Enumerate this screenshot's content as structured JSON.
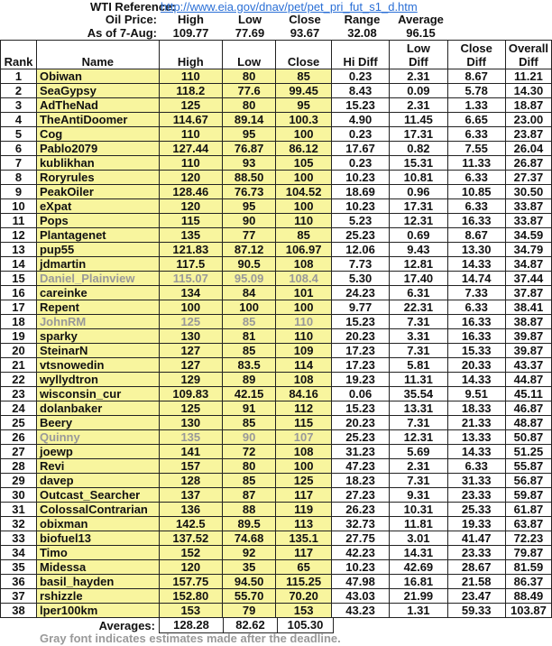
{
  "reference": {
    "label": "WTI Reference:",
    "url": "http://www.eia.gov/dnav/pet/pet_pri_fut_s1_d.htm"
  },
  "oil_price": {
    "label": "Oil Price:",
    "headers": [
      "High",
      "Low",
      "Close",
      "Range",
      "Average"
    ]
  },
  "as_of": {
    "label": "As of 7-Aug:",
    "values": [
      "109.77",
      "77.69",
      "93.67",
      "32.08",
      "96.15"
    ]
  },
  "columns": [
    "Rank",
    "Name",
    "High",
    "Low",
    "Close",
    "Hi Diff",
    "Low Diff",
    "Close Diff",
    "Overall Diff"
  ],
  "rows": [
    [
      "1",
      "Obiwan",
      "110",
      "80",
      "85",
      "0.23",
      "2.31",
      "8.67",
      "11.21"
    ],
    [
      "2",
      "SeaGypsy",
      "118.2",
      "77.6",
      "99.45",
      "8.43",
      "0.09",
      "5.78",
      "14.30"
    ],
    [
      "3",
      "AdTheNad",
      "125",
      "80",
      "95",
      "15.23",
      "2.31",
      "1.33",
      "18.87"
    ],
    [
      "4",
      "TheAntiDoomer",
      "114.67",
      "89.14",
      "100.3",
      "4.90",
      "11.45",
      "6.65",
      "23.00"
    ],
    [
      "5",
      "Cog",
      "110",
      "95",
      "100",
      "0.23",
      "17.31",
      "6.33",
      "23.87"
    ],
    [
      "6",
      "Pablo2079",
      "127.44",
      "76.87",
      "86.12",
      "17.67",
      "0.82",
      "7.55",
      "26.04"
    ],
    [
      "7",
      "kublikhan",
      "110",
      "93",
      "105",
      "0.23",
      "15.31",
      "11.33",
      "26.87"
    ],
    [
      "8",
      "Roryrules",
      "120",
      "88.50",
      "100",
      "10.23",
      "10.81",
      "6.33",
      "27.37"
    ],
    [
      "9",
      "PeakOiler",
      "128.46",
      "76.73",
      "104.52",
      "18.69",
      "0.96",
      "10.85",
      "30.50"
    ],
    [
      "10",
      "eXpat",
      "120",
      "95",
      "100",
      "10.23",
      "17.31",
      "6.33",
      "33.87"
    ],
    [
      "11",
      "Pops",
      "115",
      "90",
      "110",
      "5.23",
      "12.31",
      "16.33",
      "33.87"
    ],
    [
      "12",
      "Plantagenet",
      "135",
      "77",
      "85",
      "25.23",
      "0.69",
      "8.67",
      "34.59"
    ],
    [
      "13",
      "pup55",
      "121.83",
      "87.12",
      "106.97",
      "12.06",
      "9.43",
      "13.30",
      "34.79"
    ],
    [
      "14",
      "jdmartin",
      "117.5",
      "90.5",
      "108",
      "7.73",
      "12.81",
      "14.33",
      "34.87"
    ],
    [
      "15",
      "Daniel_Plainview",
      "115.07",
      "95.09",
      "108.4",
      "5.30",
      "17.40",
      "14.74",
      "37.44"
    ],
    [
      "16",
      "careinke",
      "134",
      "84",
      "101",
      "24.23",
      "6.31",
      "7.33",
      "37.87"
    ],
    [
      "17",
      "Repent",
      "100",
      "100",
      "100",
      "9.77",
      "22.31",
      "6.33",
      "38.41"
    ],
    [
      "18",
      "JohnRM",
      "125",
      "85",
      "110",
      "15.23",
      "7.31",
      "16.33",
      "38.87"
    ],
    [
      "19",
      "sparky",
      "130",
      "81",
      "110",
      "20.23",
      "3.31",
      "16.33",
      "39.87"
    ],
    [
      "20",
      "SteinarN",
      "127",
      "85",
      "109",
      "17.23",
      "7.31",
      "15.33",
      "39.87"
    ],
    [
      "21",
      "vtsnowedin",
      "127",
      "83.5",
      "114",
      "17.23",
      "5.81",
      "20.33",
      "43.37"
    ],
    [
      "22",
      "wyllydtron",
      "129",
      "89",
      "108",
      "19.23",
      "11.31",
      "14.33",
      "44.87"
    ],
    [
      "23",
      "wisconsin_cur",
      "109.83",
      "42.15",
      "84.16",
      "0.06",
      "35.54",
      "9.51",
      "45.11"
    ],
    [
      "24",
      "dolanbaker",
      "125",
      "91",
      "112",
      "15.23",
      "13.31",
      "18.33",
      "46.87"
    ],
    [
      "25",
      "Beery",
      "130",
      "85",
      "115",
      "20.23",
      "7.31",
      "21.33",
      "48.87"
    ],
    [
      "26",
      "Quinny",
      "135",
      "90",
      "107",
      "25.23",
      "12.31",
      "13.33",
      "50.87"
    ],
    [
      "27",
      "joewp",
      "141",
      "72",
      "108",
      "31.23",
      "5.69",
      "14.33",
      "51.25"
    ],
    [
      "28",
      "Revi",
      "157",
      "80",
      "100",
      "47.23",
      "2.31",
      "6.33",
      "55.87"
    ],
    [
      "29",
      "davep",
      "128",
      "85",
      "125",
      "18.23",
      "7.31",
      "31.33",
      "56.87"
    ],
    [
      "30",
      "Outcast_Searcher",
      "137",
      "87",
      "117",
      "27.23",
      "9.31",
      "23.33",
      "59.87"
    ],
    [
      "31",
      "ColossalContrarian",
      "136",
      "88",
      "119",
      "26.23",
      "10.31",
      "25.33",
      "61.87"
    ],
    [
      "32",
      "obixman",
      "142.5",
      "89.5",
      "113",
      "32.73",
      "11.81",
      "19.33",
      "63.87"
    ],
    [
      "33",
      "biofuel13",
      "137.52",
      "74.68",
      "135.1",
      "27.75",
      "3.01",
      "41.47",
      "72.23"
    ],
    [
      "34",
      "Timo",
      "152",
      "92",
      "117",
      "42.23",
      "14.31",
      "23.33",
      "79.87"
    ],
    [
      "35",
      "Midessa",
      "120",
      "35",
      "65",
      "10.23",
      "42.69",
      "28.67",
      "81.59"
    ],
    [
      "36",
      "basil_hayden",
      "157.75",
      "94.50",
      "115.25",
      "47.98",
      "16.81",
      "21.58",
      "86.37"
    ],
    [
      "37",
      "rshizzle",
      "152.80",
      "55.70",
      "70.20",
      "43.03",
      "21.99",
      "23.47",
      "88.49"
    ],
    [
      "38",
      "lper100km",
      "153",
      "79",
      "153",
      "43.23",
      "1.31",
      "59.33",
      "103.87"
    ]
  ],
  "late_ranks": [
    "15",
    "18",
    "26"
  ],
  "averages": {
    "label": "Averages:",
    "values": [
      "128.28",
      "82.62",
      "105.30"
    ]
  },
  "note": "Gray font indicates estimates made after the deadline.",
  "colors": {
    "highlight": "#f8f59e",
    "late_text": "#999999",
    "link": "#2a6fd6"
  }
}
